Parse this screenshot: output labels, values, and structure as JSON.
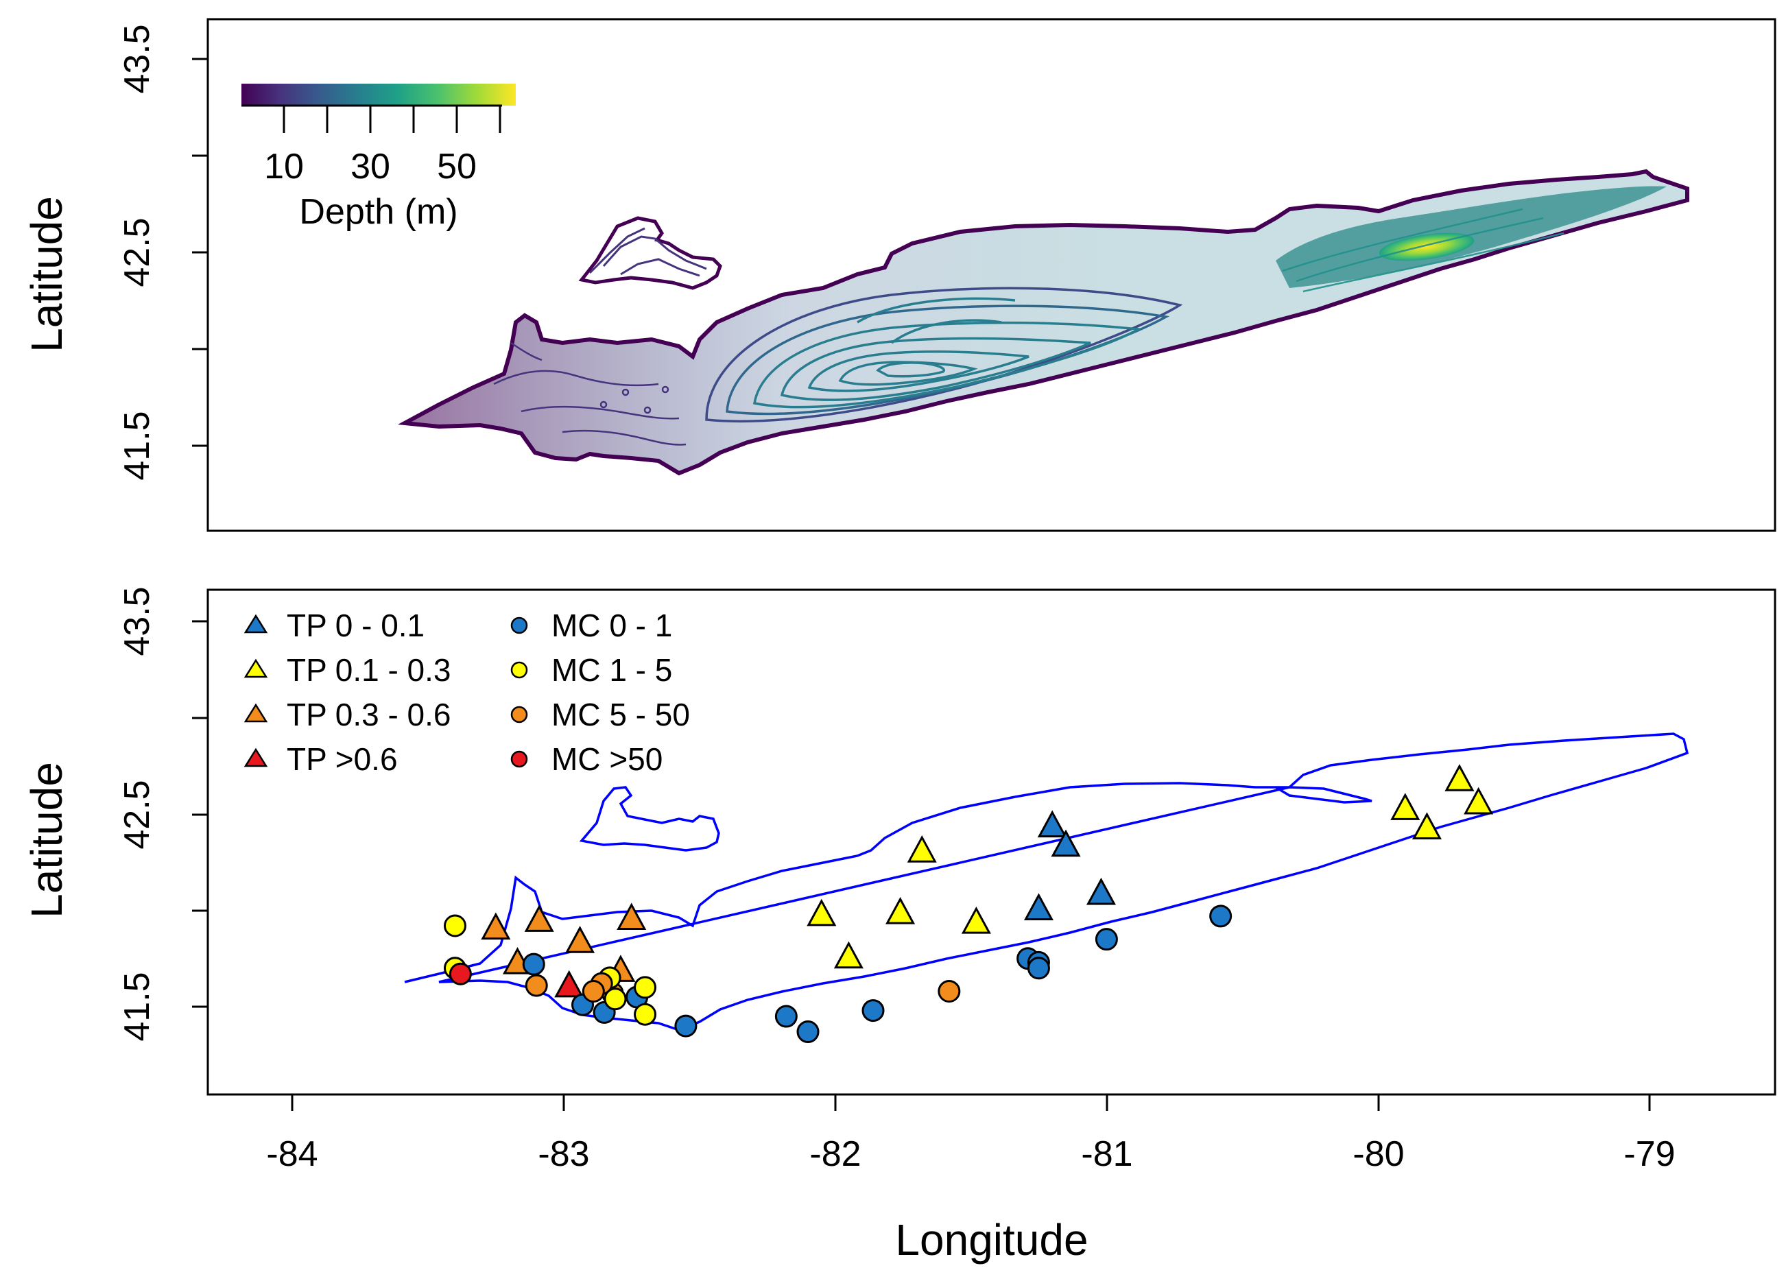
{
  "chart_data": [
    {
      "type": "map-contour",
      "title": "",
      "ylabel": "Latitude",
      "xlim": [
        -84.3,
        -78.5
      ],
      "ylim": [
        41.05,
        43.65
      ],
      "yticks": [
        41.5,
        42.5,
        43.5
      ],
      "yticks_minor": [
        41.0,
        42.0,
        43.0
      ],
      "ytick_labels": [
        "41.5",
        "42.5",
        "43.5"
      ],
      "colorbar": {
        "title": "Depth (m)",
        "tick_labels": [
          "10",
          "30",
          "50"
        ],
        "ticks": [
          10,
          20,
          30,
          40,
          50,
          60
        ],
        "range": [
          0,
          64
        ],
        "stops": [
          "#440154",
          "#46337e",
          "#365c8d",
          "#277f8e",
          "#1fa187",
          "#4ac16d",
          "#a0da39",
          "#fde725"
        ]
      },
      "basin_depth_peak_m": 64
    },
    {
      "type": "scatter-map",
      "xlabel": "Longitude",
      "ylabel": "Latitude",
      "xlim": [
        -84.3,
        -78.5
      ],
      "ylim": [
        41.05,
        43.65
      ],
      "xticks": [
        -84,
        -83,
        -82,
        -81,
        -80,
        -79
      ],
      "xtick_labels": [
        "-84",
        "-83",
        "-82",
        "-81",
        "-80",
        "-79"
      ],
      "yticks": [
        41.5,
        42.5,
        43.5
      ],
      "ytick_labels": [
        "41.5",
        "42.5",
        "43.5"
      ],
      "shoreline_color": "#0000ff",
      "legend": [
        {
          "label": "TP 0 - 0.1",
          "shape": "triangle",
          "color": "#1e78c8"
        },
        {
          "label": "TP 0.1 - 0.3",
          "shape": "triangle",
          "color": "#ffff00"
        },
        {
          "label": "TP 0.3 - 0.6",
          "shape": "triangle",
          "color": "#f28c1c"
        },
        {
          "label": "TP >0.6",
          "shape": "triangle",
          "color": "#e8191e"
        },
        {
          "label": "MC 0 - 1",
          "shape": "circle",
          "color": "#1e78c8"
        },
        {
          "label": "MC 1 - 5",
          "shape": "circle",
          "color": "#ffff00"
        },
        {
          "label": "MC 5 - 50",
          "shape": "circle",
          "color": "#f28c1c"
        },
        {
          "label": "MC >50",
          "shape": "circle",
          "color": "#e8191e"
        }
      ],
      "triangles": [
        {
          "lon": -81.2,
          "lat": 42.43,
          "cls": 0
        },
        {
          "lon": -81.15,
          "lat": 42.33,
          "cls": 0
        },
        {
          "lon": -81.02,
          "lat": 42.08,
          "cls": 0
        },
        {
          "lon": -81.25,
          "lat": 42.0,
          "cls": 0
        },
        {
          "lon": -81.68,
          "lat": 42.3,
          "cls": 1
        },
        {
          "lon": -81.76,
          "lat": 41.98,
          "cls": 1
        },
        {
          "lon": -81.48,
          "lat": 41.93,
          "cls": 1
        },
        {
          "lon": -82.05,
          "lat": 41.97,
          "cls": 1
        },
        {
          "lon": -81.95,
          "lat": 41.75,
          "cls": 1
        },
        {
          "lon": -79.9,
          "lat": 42.52,
          "cls": 1
        },
        {
          "lon": -79.82,
          "lat": 42.42,
          "cls": 1
        },
        {
          "lon": -79.7,
          "lat": 42.67,
          "cls": 1
        },
        {
          "lon": -79.63,
          "lat": 42.55,
          "cls": 1
        },
        {
          "lon": -83.25,
          "lat": 41.9,
          "cls": 2
        },
        {
          "lon": -83.09,
          "lat": 41.94,
          "cls": 2
        },
        {
          "lon": -82.94,
          "lat": 41.83,
          "cls": 2
        },
        {
          "lon": -82.75,
          "lat": 41.95,
          "cls": 2
        },
        {
          "lon": -83.17,
          "lat": 41.72,
          "cls": 2
        },
        {
          "lon": -82.79,
          "lat": 41.68,
          "cls": 2
        },
        {
          "lon": -82.98,
          "lat": 41.6,
          "cls": 3
        }
      ],
      "circles": [
        {
          "lon": -83.4,
          "lat": 41.92,
          "cls": 1
        },
        {
          "lon": -83.4,
          "lat": 41.7,
          "cls": 1
        },
        {
          "lon": -83.38,
          "lat": 41.67,
          "cls": 3
        },
        {
          "lon": -83.11,
          "lat": 41.72,
          "cls": 0
        },
        {
          "lon": -83.1,
          "lat": 41.61,
          "cls": 2
        },
        {
          "lon": -82.93,
          "lat": 41.51,
          "cls": 0
        },
        {
          "lon": -82.85,
          "lat": 41.47,
          "cls": 0
        },
        {
          "lon": -82.82,
          "lat": 41.57,
          "cls": 2
        },
        {
          "lon": -82.81,
          "lat": 41.54,
          "cls": 1
        },
        {
          "lon": -82.83,
          "lat": 41.65,
          "cls": 1
        },
        {
          "lon": -82.86,
          "lat": 41.62,
          "cls": 2
        },
        {
          "lon": -82.89,
          "lat": 41.58,
          "cls": 2
        },
        {
          "lon": -82.73,
          "lat": 41.55,
          "cls": 0
        },
        {
          "lon": -82.7,
          "lat": 41.6,
          "cls": 1
        },
        {
          "lon": -82.7,
          "lat": 41.46,
          "cls": 1
        },
        {
          "lon": -82.55,
          "lat": 41.4,
          "cls": 0
        },
        {
          "lon": -82.18,
          "lat": 41.45,
          "cls": 0
        },
        {
          "lon": -82.1,
          "lat": 41.37,
          "cls": 0
        },
        {
          "lon": -81.86,
          "lat": 41.48,
          "cls": 0
        },
        {
          "lon": -81.58,
          "lat": 41.58,
          "cls": 2
        },
        {
          "lon": -81.29,
          "lat": 41.75,
          "cls": 0
        },
        {
          "lon": -81.25,
          "lat": 41.73,
          "cls": 0
        },
        {
          "lon": -81.25,
          "lat": 41.7,
          "cls": 0
        },
        {
          "lon": -81.0,
          "lat": 41.85,
          "cls": 0
        },
        {
          "lon": -80.58,
          "lat": 41.97,
          "cls": 0
        }
      ]
    }
  ]
}
